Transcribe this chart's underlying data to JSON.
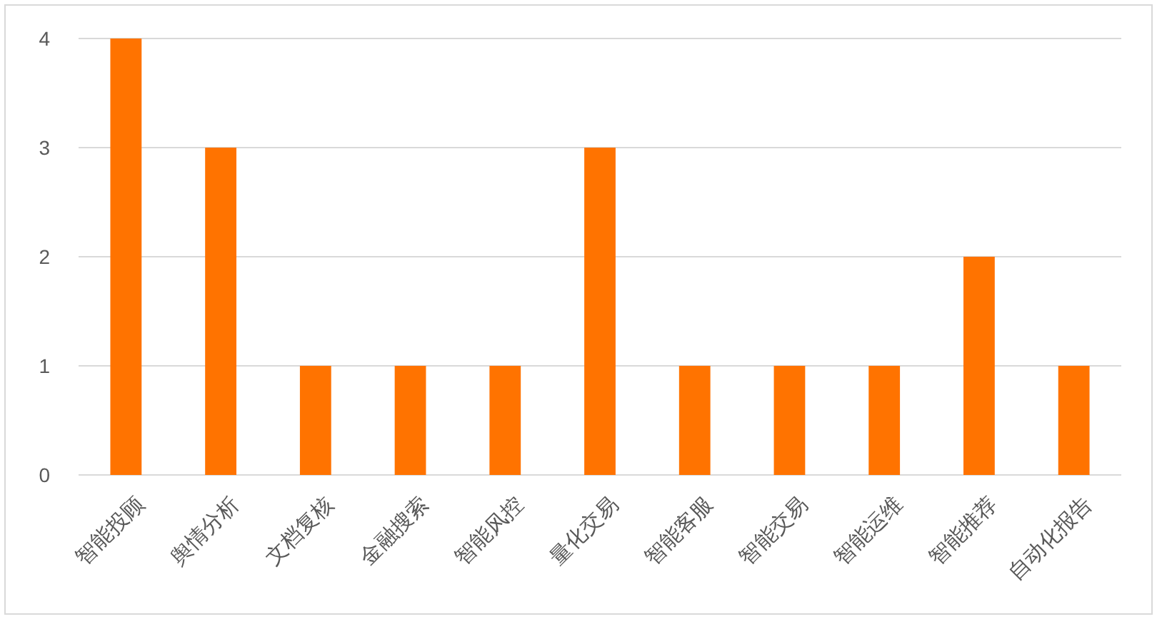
{
  "chart_data": {
    "type": "bar",
    "categories": [
      "智能投顾",
      "舆情分析",
      "文档复核",
      "金融搜索",
      "智能风控",
      "量化交易",
      "智能客服",
      "智能交易",
      "智能运维",
      "智能推荐",
      "自动化报告"
    ],
    "values": [
      4,
      3,
      1,
      1,
      1,
      3,
      1,
      1,
      1,
      2,
      1
    ],
    "color": "#ff7300",
    "ylim": [
      0,
      4
    ],
    "yticks": [
      0,
      1,
      2,
      3,
      4
    ],
    "grid": "y"
  }
}
